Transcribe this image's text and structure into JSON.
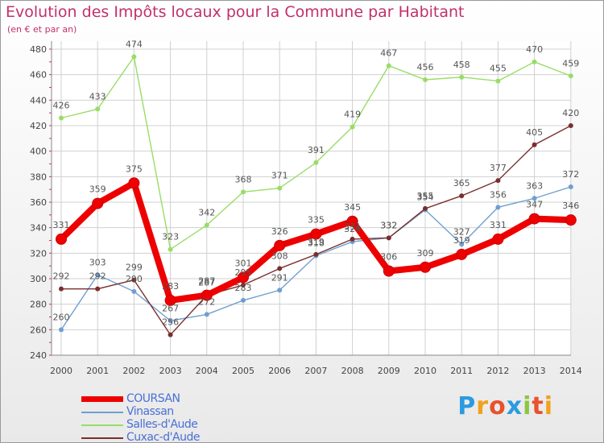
{
  "header": {
    "title": "Evolution des Impôts locaux pour la Commune par Habitant",
    "subtitle": "(en € et par an)"
  },
  "brand": {
    "letters": [
      "P",
      "r",
      "o",
      "x",
      "i",
      "t",
      "i"
    ]
  },
  "chart_data": {
    "type": "line",
    "title": "Evolution des Impôts locaux pour la Commune par Habitant",
    "subtitle": "(en € et par an)",
    "xlabel": "",
    "ylabel": "",
    "ylim": [
      240,
      480
    ],
    "yticks": [
      240,
      260,
      280,
      300,
      320,
      340,
      360,
      380,
      400,
      420,
      440,
      460,
      480
    ],
    "categories": [
      "2000",
      "2001",
      "2002",
      "2003",
      "2004",
      "2005",
      "2006",
      "2007",
      "2008",
      "2009",
      "2010",
      "2011",
      "2012",
      "2013",
      "2014"
    ],
    "grid": true,
    "legend_position": "bottom-left",
    "series": [
      {
        "name": "COURSAN",
        "color": "#ee0000",
        "values": [
          331,
          359,
          375,
          283,
          287,
          301,
          326,
          335,
          345,
          306,
          309,
          319,
          331,
          347,
          346
        ],
        "labels": [
          "331",
          "359",
          "375",
          "283",
          "287",
          "301",
          "326",
          "335",
          "345",
          "306",
          "309",
          "319",
          "331",
          "347",
          "346"
        ]
      },
      {
        "name": "Vinassan",
        "color": "#6f9fd0",
        "values": [
          260,
          303,
          290,
          267,
          272,
          283,
          291,
          318,
          329,
          332,
          354,
          327,
          356,
          363,
          372
        ],
        "labels": [
          "260",
          "303",
          "290",
          "267",
          "272",
          "283",
          "291",
          "318",
          "329",
          "332",
          "354",
          "327",
          "356",
          "363",
          "372"
        ]
      },
      {
        "name": "Salles-d'Aude",
        "color": "#99dd66",
        "values": [
          426,
          433,
          474,
          323,
          342,
          368,
          371,
          391,
          419,
          467,
          456,
          458,
          455,
          470,
          459
        ],
        "labels": [
          "426",
          "433",
          "474",
          "323",
          "342",
          "368",
          "371",
          "391",
          "419",
          "467",
          "456",
          "458",
          "455",
          "470",
          "459"
        ]
      },
      {
        "name": "Cuxac-d'Aude",
        "color": "#7a2e2e",
        "values": [
          292,
          292,
          299,
          256,
          287,
          295,
          308,
          319,
          331,
          332,
          355,
          365,
          377,
          405,
          420
        ],
        "labels": [
          "292",
          "292",
          "299",
          "256",
          "287",
          "295",
          "308",
          "319",
          "331",
          "332",
          "355",
          "365",
          "377",
          "405",
          "420"
        ]
      }
    ]
  }
}
